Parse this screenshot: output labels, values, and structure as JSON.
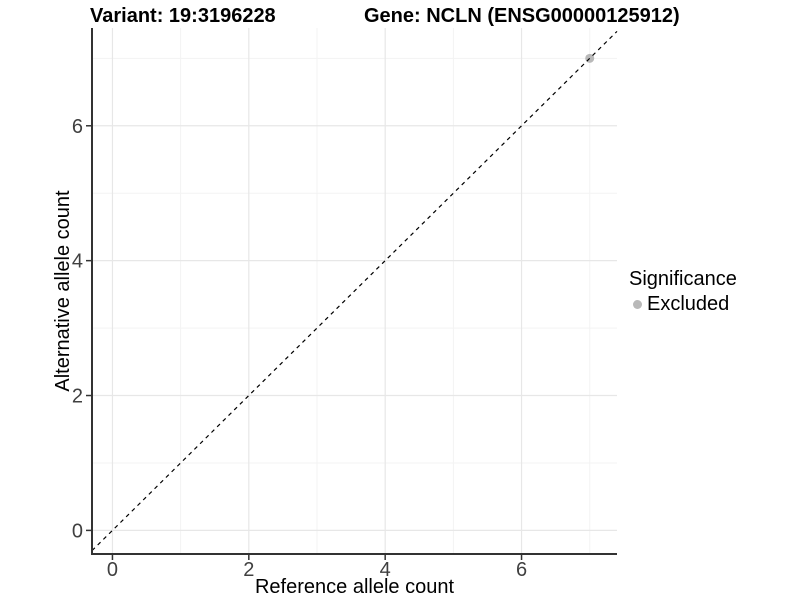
{
  "header": {
    "variant_title": "Variant: 19:3196228",
    "gene_title": "Gene: NCLN (ENSG00000125912)"
  },
  "chart_data": {
    "type": "scatter",
    "title": "Variant: 19:3196228  /  Gene: NCLN (ENSG00000125912)",
    "xlabel": "Reference allele count",
    "ylabel": "Alternative allele count",
    "xlim": [
      -0.3,
      7.4
    ],
    "ylim": [
      -0.35,
      7.45
    ],
    "xticks": [
      0,
      2,
      4,
      6
    ],
    "yticks": [
      0,
      2,
      4,
      6
    ],
    "xminor": [
      1,
      3,
      5,
      7
    ],
    "yminor": [
      1,
      3,
      5,
      7
    ],
    "grid": true,
    "series": [
      {
        "name": "Excluded",
        "color": "#b9b9b9",
        "point_radius": 4.5,
        "points": [
          {
            "x": 7,
            "y": 7
          }
        ]
      }
    ],
    "reference_line": {
      "type": "identity y=x",
      "style": "dashed",
      "color": "#000000"
    },
    "legend": {
      "title": "Significance",
      "position": "right",
      "entries": [
        {
          "label": "Excluded",
          "color": "#b9b9b9"
        }
      ]
    },
    "colors": {
      "panel_bg": "#ffffff",
      "grid_major": "#e7e7e7",
      "grid_minor": "#f3f3f3",
      "axis_line": "#333333",
      "tick_label": "#404040",
      "text": "#000000"
    }
  }
}
